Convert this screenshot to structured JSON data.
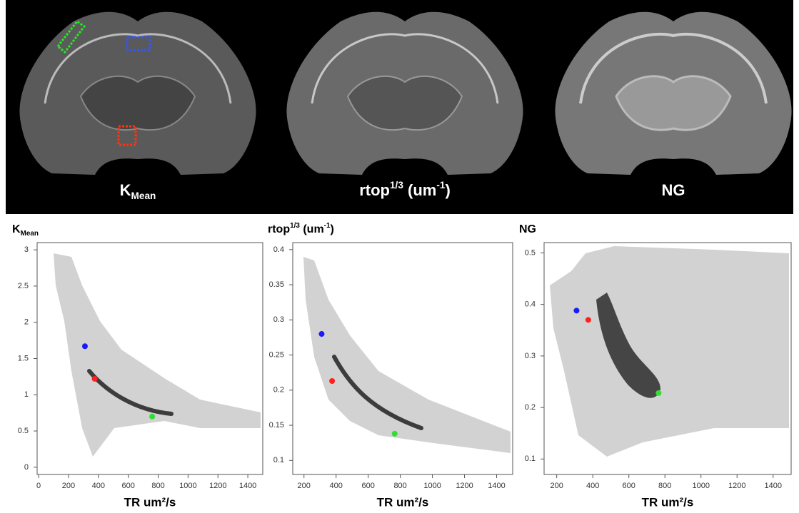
{
  "images": [
    {
      "label": [
        {
          "text": "K"
        },
        {
          "text": "Mean",
          "sub": true
        }
      ]
    },
    {
      "label": [
        {
          "text": "rtop"
        },
        {
          "text": "1/3",
          "sup": true
        },
        {
          "text": " (um"
        },
        {
          "text": "-1",
          "sup": true
        },
        {
          "text": ")"
        }
      ]
    },
    {
      "label": [
        {
          "text": "NG"
        }
      ]
    }
  ],
  "chart_data": [
    {
      "type": "scatter",
      "title": [
        {
          "text": "K"
        },
        {
          "text": "Mean",
          "sub": true
        }
      ],
      "x_label": "TR um²/s",
      "xlim": [
        -10,
        1500
      ],
      "xticks": [
        0,
        200,
        400,
        600,
        800,
        1000,
        1200,
        1400
      ],
      "ylim": [
        -0.1,
        3.1
      ],
      "yticks": [
        0,
        0.5,
        1,
        1.5,
        2,
        2.5,
        3
      ],
      "series": [
        {
          "color": "#1a1aff",
          "x": [
            310
          ],
          "values": [
            1.67
          ]
        },
        {
          "color": "#ff2020",
          "x": [
            375
          ],
          "values": [
            1.22
          ]
        },
        {
          "color": "#33dd33",
          "x": [
            760
          ],
          "values": [
            0.7
          ]
        }
      ]
    },
    {
      "type": "scatter",
      "title": [
        {
          "text": "rtop"
        },
        {
          "text": "1/3",
          "sup": true
        },
        {
          "text": " (um"
        },
        {
          "text": "-1",
          "sup": true
        },
        {
          "text": ")"
        }
      ],
      "x_label": "TR um²/s",
      "xlim": [
        130,
        1500
      ],
      "xticks": [
        200,
        400,
        600,
        800,
        1000,
        1200,
        1400
      ],
      "ylim": [
        0.08,
        0.41
      ],
      "yticks": [
        0.1,
        0.15,
        0.2,
        0.25,
        0.3,
        0.35,
        0.4
      ],
      "series": [
        {
          "color": "#1a1aff",
          "x": [
            310
          ],
          "values": [
            0.28
          ]
        },
        {
          "color": "#ff2020",
          "x": [
            375
          ],
          "values": [
            0.213
          ]
        },
        {
          "color": "#33dd33",
          "x": [
            765
          ],
          "values": [
            0.138
          ]
        }
      ]
    },
    {
      "type": "scatter",
      "title": [
        {
          "text": "NG"
        }
      ],
      "x_label": "TR um²/s",
      "xlim": [
        130,
        1500
      ],
      "xticks": [
        200,
        400,
        600,
        800,
        1000,
        1200,
        1400
      ],
      "ylim": [
        0.07,
        0.52
      ],
      "yticks": [
        0.1,
        0.2,
        0.3,
        0.4,
        0.5
      ],
      "series": [
        {
          "color": "#1a1aff",
          "x": [
            310
          ],
          "values": [
            0.388
          ]
        },
        {
          "color": "#ff2020",
          "x": [
            375
          ],
          "values": [
            0.37
          ]
        },
        {
          "color": "#33dd33",
          "x": [
            765
          ],
          "values": [
            0.228
          ]
        }
      ]
    }
  ]
}
